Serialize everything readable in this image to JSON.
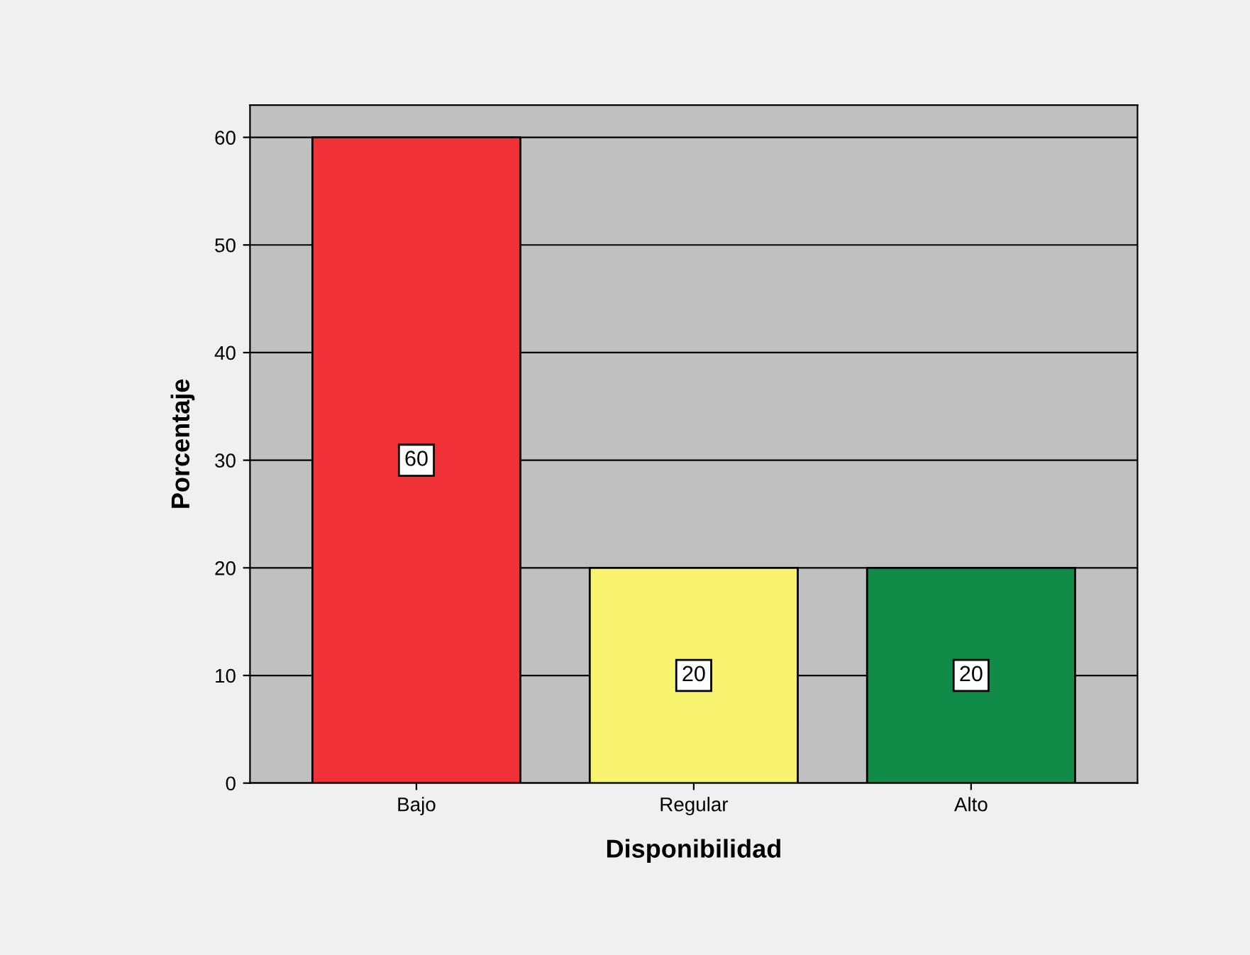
{
  "chart_data": {
    "type": "bar",
    "xlabel": "Disponibilidad",
    "ylabel": "Porcentaje",
    "categories": [
      "Bajo",
      "Regular",
      "Alto"
    ],
    "values": [
      60,
      20,
      20
    ],
    "colors": [
      "#f03238",
      "#f8f470",
      "#108c48"
    ],
    "ylim": [
      0,
      63
    ],
    "yticks": [
      0,
      10,
      20,
      30,
      40,
      50,
      60
    ],
    "grid": "y",
    "data_labels": true
  }
}
